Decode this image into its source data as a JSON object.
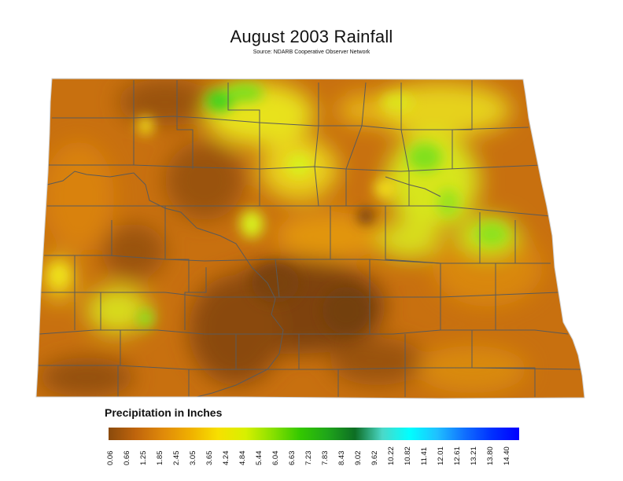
{
  "title": "August 2003 Rainfall",
  "subtitle": "Source: NDARB Cooperative Observer Network",
  "legend": {
    "title": "Precipitation in Inches",
    "ticks": [
      "0.06",
      "0.66",
      "1.25",
      "1.85",
      "2.45",
      "3.05",
      "3.65",
      "4.24",
      "4.84",
      "5.44",
      "6.04",
      "6.63",
      "7.23",
      "7.83",
      "8.43",
      "9.02",
      "9.62",
      "10.22",
      "10.82",
      "11.41",
      "12.01",
      "12.61",
      "13.21",
      "13.80",
      "14.40"
    ],
    "gradient_colors": [
      "#8a4a0c",
      "#c0650c",
      "#e08a0a",
      "#f0b000",
      "#f7e000",
      "#d8f000",
      "#88e000",
      "#33c800",
      "#1fa51a",
      "#0d6e24",
      "#4bd8c8",
      "#00ffff",
      "#20c0ff",
      "#1070ff",
      "#0030ff",
      "#0000ff"
    ]
  },
  "colors": {
    "dry_dark": "#7e430d",
    "dry": "#c76f0e",
    "moderate": "#e39a0e",
    "wet": "#dfe81e",
    "wettest": "#3bd31a",
    "county_line": "#5a5a5a"
  }
}
